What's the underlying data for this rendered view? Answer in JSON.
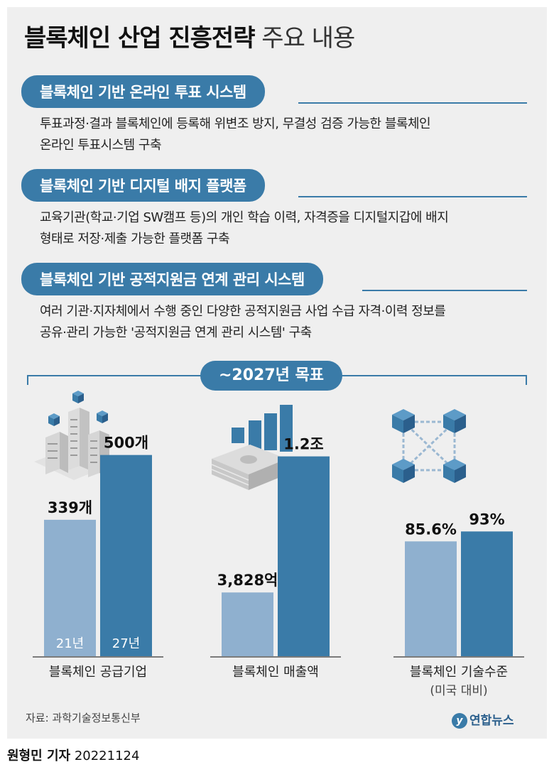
{
  "title_bold": "블록체인 산업 진흥전략",
  "title_light": "주요 내용",
  "sections": [
    {
      "heading": "블록체인 기반 온라인 투표 시스템",
      "lines": [
        "투표과정·결과 블록체인에 등록해 위변조 방지, 무결성 검증 가능한 블록체인",
        "온라인 투표시스템 구축"
      ]
    },
    {
      "heading": "블록체인 기반 디지털 배지 플랫폼",
      "lines": [
        "교육기관(학교·기업 SW캠프 등)의 개인 학습 이력, 자격증을 디지털지갑에 배지",
        "형태로 저장·제출 가능한 플랫폼 구축"
      ]
    },
    {
      "heading": "블록체인 기반 공적지원금 연계 관리 시스템",
      "lines": [
        "여러 기관·지자체에서 수행 중인 다양한 공적지원금 사업 수급 자격·이력 정보를",
        "공유·관리 가능한 '공적지원금 연계 관리 시스템' 구축"
      ]
    }
  ],
  "goal_label": "~2027년 목표",
  "chart_data": [
    {
      "type": "bar",
      "title": "블록체인 공급기업",
      "subtitle": "",
      "categories": [
        "21년",
        "27년"
      ],
      "values": [
        339,
        500
      ],
      "value_labels": [
        "339개",
        "500개"
      ],
      "ylim": [
        0,
        600
      ],
      "icon": "buildings-icon"
    },
    {
      "type": "bar",
      "title": "블록체인 매출액",
      "subtitle": "",
      "categories": [
        "",
        ""
      ],
      "values": [
        0.3828,
        1.2
      ],
      "value_labels": [
        "3,828억",
        "1.2조"
      ],
      "ylim": [
        0,
        1.45
      ],
      "icon": "money-growth-icon"
    },
    {
      "type": "bar",
      "title": "블록체인 기술수준",
      "subtitle": "(미국 대비)",
      "categories": [
        "",
        ""
      ],
      "values": [
        85.6,
        93
      ],
      "value_labels": [
        "85.6%",
        "93%"
      ],
      "ylim": [
        0,
        180
      ],
      "icon": "blockchain-network-icon"
    }
  ],
  "colors": {
    "accent": "#3a7ba8",
    "bar_light": "#8fb0cf",
    "bar_dark": "#3a7ba8",
    "background": "#efefef"
  },
  "source": "자료: 과학기술정보통신부",
  "logo_text": "연합뉴스",
  "credit_name": "원형민 기자",
  "credit_date": "20221124"
}
